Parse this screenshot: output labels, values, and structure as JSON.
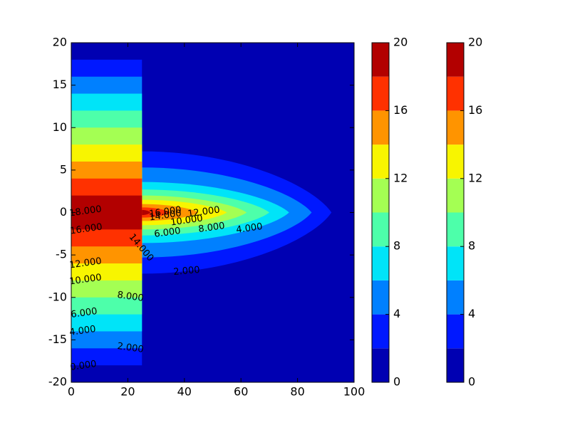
{
  "chart_data": {
    "type": "contour",
    "xlim": [
      0,
      100
    ],
    "ylim": [
      -20,
      20
    ],
    "xticks": [
      0,
      20,
      40,
      60,
      80,
      100
    ],
    "yticks": [
      -20,
      -15,
      -10,
      -5,
      0,
      5,
      10,
      15,
      20
    ],
    "levels": [
      0,
      2,
      4,
      6,
      8,
      10,
      12,
      14,
      16,
      18,
      20
    ],
    "colors": [
      "#0000b2",
      "#0018ff",
      "#0080ff",
      "#00e4f8",
      "#4dffaa",
      "#a4ff53",
      "#f8f500",
      "#ff9400",
      "#ff3100",
      "#b20000"
    ],
    "contours": [
      {
        "level": 2,
        "strip_half_height": 18,
        "tip_x": 92,
        "half_height": 7.2
      },
      {
        "level": 4,
        "strip_half_height": 16,
        "tip_x": 85,
        "half_height": 5.3
      },
      {
        "level": 6,
        "strip_half_height": 14,
        "tip_x": 77,
        "half_height": 3.6
      },
      {
        "level": 8,
        "strip_half_height": 12,
        "tip_x": 70,
        "half_height": 2.7
      },
      {
        "level": 10,
        "strip_half_height": 10,
        "tip_x": 62,
        "half_height": 2.0
      },
      {
        "level": 12,
        "strip_half_height": 8,
        "tip_x": 55,
        "half_height": 1.5
      },
      {
        "level": 14,
        "strip_half_height": 6,
        "tip_x": 45,
        "half_height": 1.0
      },
      {
        "level": 16,
        "strip_half_height": 4,
        "tip_x": 35,
        "half_height": 0.6
      },
      {
        "level": 18,
        "strip_half_height": 2,
        "tip_x": 28,
        "half_height": 0.3
      }
    ],
    "strip_x": 25,
    "contour_labels": [
      {
        "value": 18,
        "label": "18.000"
      },
      {
        "value": 16,
        "label": "16.000"
      },
      {
        "value": 14,
        "label": "14.000"
      },
      {
        "value": 12,
        "label": "12.000"
      },
      {
        "value": 10,
        "label": "10.000"
      },
      {
        "value": 8,
        "label": "8.000"
      },
      {
        "value": 6,
        "label": "6.000"
      },
      {
        "value": 4,
        "label": "4.000"
      },
      {
        "value": 2,
        "label": "2.000"
      },
      {
        "value": 0,
        "label": "0.000"
      },
      {
        "value": 16,
        "label": "16.000"
      },
      {
        "value": 14,
        "label": "14.000"
      },
      {
        "value": 12,
        "label": "12.000"
      },
      {
        "value": 10,
        "label": "10.000"
      },
      {
        "value": 8,
        "label": "8.000"
      },
      {
        "value": 6,
        "label": "6.000"
      },
      {
        "value": 4,
        "label": "4.000"
      },
      {
        "value": 2,
        "label": "2.000"
      }
    ],
    "colorbars": [
      {
        "lim": [
          0,
          20
        ],
        "ticks": [
          0,
          4,
          8,
          12,
          16,
          20
        ]
      },
      {
        "lim": [
          0,
          20
        ],
        "ticks": [
          0,
          4,
          8,
          12,
          16,
          20
        ]
      }
    ]
  }
}
